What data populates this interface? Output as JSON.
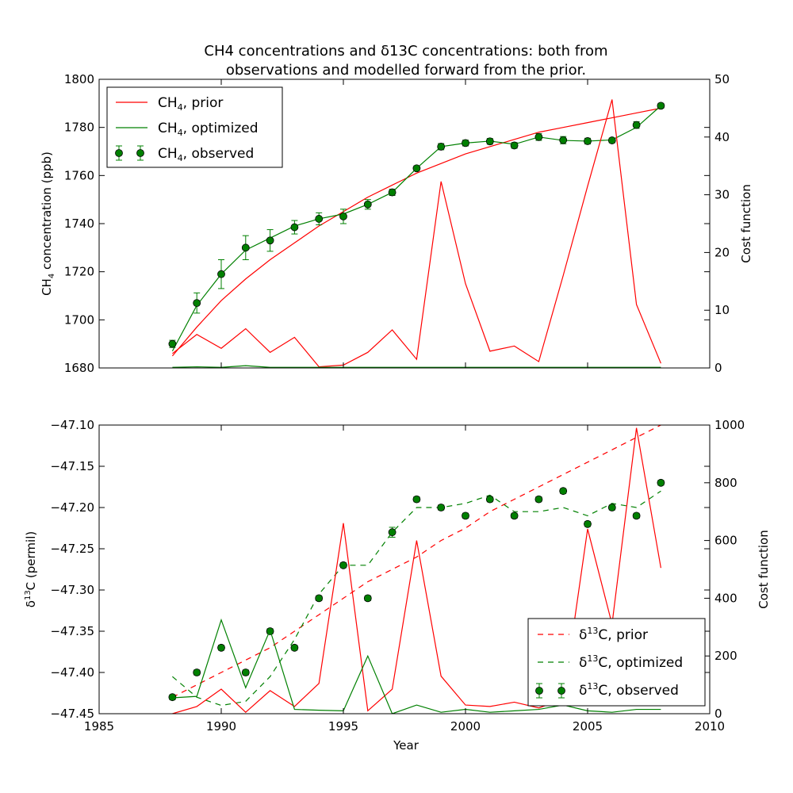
{
  "colors": {
    "prior": "#ff0000",
    "optimized": "#008000",
    "observed": "#008000"
  },
  "chart_data": [
    {
      "type": "line",
      "title_line1": "CH4 concentrations and δ13C concentrations: both from",
      "title_line2": "observations and modelled forward from the prior.",
      "ylabel_left_main": "CH",
      "ylabel_left_sub": "4",
      "ylabel_left_rest": " concentration (ppb)",
      "ylabel_right": "Cost function",
      "xlim": [
        1985,
        2010
      ],
      "ylim_left": [
        1680,
        1800
      ],
      "ylim_right": [
        0,
        50
      ],
      "yticks_left": [
        "1680",
        "1700",
        "1720",
        "1740",
        "1760",
        "1780",
        "1800"
      ],
      "yticks_right": [
        "0",
        "10",
        "20",
        "30",
        "40",
        "50"
      ],
      "legend_placement": "upper-left",
      "legend": [
        {
          "main": "CH",
          "sub": "4",
          "rest": ", prior"
        },
        {
          "main": "CH",
          "sub": "4",
          "rest": ", optimized"
        },
        {
          "main": "CH",
          "sub": "4",
          "rest": ", observed"
        }
      ],
      "x": [
        1988,
        1989,
        1990,
        1991,
        1992,
        1993,
        1994,
        1995,
        1996,
        1997,
        1998,
        1999,
        2000,
        2001,
        2002,
        2003,
        2004,
        2005,
        2006,
        2007,
        2008
      ],
      "series": [
        {
          "role": "prior",
          "axis": "left",
          "values": [
            1685,
            1697,
            1708,
            1717,
            1725,
            1732,
            1739,
            1745,
            1751,
            1756,
            1761,
            1765,
            1769,
            1772,
            1775,
            1778,
            1780,
            1782,
            1784,
            1786,
            1788
          ]
        },
        {
          "role": "optimized",
          "axis": "left",
          "values": [
            1687,
            1706,
            1719,
            1729,
            1734,
            1739,
            1742,
            1744,
            1748,
            1753,
            1763,
            1772,
            1773.5,
            1774.3,
            1773,
            1776,
            1774.6,
            1774.3,
            1774.8,
            1780,
            1789
          ]
        },
        {
          "role": "observed",
          "axis": "left",
          "values": [
            1690,
            1707,
            1719,
            1730,
            1733,
            1738.5,
            1742,
            1743,
            1748,
            1753,
            1763,
            1772,
            1773.5,
            1774.2,
            1772.5,
            1776,
            1774.7,
            1774.3,
            1774.6,
            1781,
            1789
          ],
          "errors": [
            1.5,
            4.2,
            6,
            5,
            4.5,
            2.8,
            2.5,
            3,
            2,
            1.3,
            1,
            1.3,
            1.2,
            1.2,
            1.2,
            1.4,
            1.5,
            1.2,
            1,
            1.4,
            1
          ]
        },
        {
          "role": "prior",
          "axis": "right",
          "values": [
            2.5,
            5.8,
            3.4,
            6.8,
            2.7,
            5.3,
            0.2,
            0.5,
            2.7,
            6.6,
            1.5,
            32.3,
            14.6,
            2.9,
            3.8,
            1.1,
            16,
            31.5,
            46.5,
            11,
            0.8
          ]
        },
        {
          "role": "optimized",
          "axis": "right",
          "values": [
            0.1,
            0.2,
            0.1,
            0.4,
            0.1,
            0.1,
            0.1,
            0.1,
            0.1,
            0.1,
            0.1,
            0.1,
            0.1,
            0.1,
            0.1,
            0.1,
            0.1,
            0.1,
            0.1,
            0.1,
            0.1
          ]
        }
      ]
    },
    {
      "type": "line",
      "xlabel": "Year",
      "ylabel_left_pre": "δ",
      "ylabel_left_sup": "13",
      "ylabel_left_rest": "C (permil)",
      "ylabel_right": "Cost function",
      "xlim": [
        1985,
        2010
      ],
      "ylim_left": [
        -47.45,
        -47.1
      ],
      "ylim_right": [
        0,
        1000
      ],
      "xticks": [
        "1985",
        "1990",
        "1995",
        "2000",
        "2005",
        "2010"
      ],
      "yticks_left": [
        "−47.45",
        "−47.40",
        "−47.35",
        "−47.30",
        "−47.25",
        "−47.20",
        "−47.15",
        "−47.10"
      ],
      "yticks_right": [
        "0",
        "200",
        "400",
        "600",
        "800",
        "1000"
      ],
      "legend_placement": "lower-right",
      "legend": [
        {
          "pre": "δ",
          "sup": "13",
          "rest": "C, prior"
        },
        {
          "pre": "δ",
          "sup": "13",
          "rest": "C, optimized"
        },
        {
          "pre": "δ",
          "sup": "13",
          "rest": "C, observed"
        }
      ],
      "x": [
        1988,
        1989,
        1990,
        1991,
        1992,
        1993,
        1994,
        1995,
        1996,
        1997,
        1998,
        1999,
        2000,
        2001,
        2002,
        2003,
        2004,
        2005,
        2006,
        2007,
        2008
      ],
      "series": [
        {
          "role": "prior",
          "axis": "left",
          "dashed": true,
          "values": [
            -47.43,
            -47.415,
            -47.4,
            -47.385,
            -47.37,
            -47.35,
            -47.33,
            -47.31,
            -47.29,
            -47.275,
            -47.26,
            -47.24,
            -47.225,
            -47.205,
            -47.19,
            -47.175,
            -47.16,
            -47.145,
            -47.13,
            -47.115,
            -47.1
          ]
        },
        {
          "role": "optimized",
          "axis": "left",
          "dashed": true,
          "values": [
            -47.405,
            -47.43,
            -47.44,
            -47.435,
            -47.405,
            -47.36,
            -47.305,
            -47.27,
            -47.27,
            -47.23,
            -47.2,
            -47.2,
            -47.195,
            -47.185,
            -47.205,
            -47.205,
            -47.2,
            -47.21,
            -47.195,
            -47.2,
            -47.18
          ]
        },
        {
          "role": "observed",
          "axis": "left",
          "values": [
            -47.43,
            -47.4,
            -47.37,
            -47.4,
            -47.35,
            -47.37,
            -47.31,
            -47.27,
            -47.31,
            -47.23,
            -47.19,
            -47.2,
            -47.21,
            -47.19,
            -47.21,
            -47.19,
            -47.18,
            -47.22,
            -47.2,
            -47.21,
            -47.17
          ],
          "errors": [
            0.003,
            0.003,
            0.003,
            0.003,
            0.003,
            0.003,
            0.003,
            0.003,
            0.003,
            0.006,
            0.003,
            0.003,
            0.003,
            0.003,
            0.003,
            0.003,
            0.003,
            0.003,
            0.003,
            0.003,
            0.003
          ]
        },
        {
          "role": "prior",
          "axis": "right",
          "values": [
            0,
            25,
            85,
            5,
            80,
            25,
            105,
            660,
            10,
            85,
            600,
            130,
            30,
            25,
            40,
            20,
            50,
            640,
            310,
            990,
            505
          ]
        },
        {
          "role": "optimized",
          "axis": "right",
          "values": [
            55,
            60,
            325,
            90,
            290,
            15,
            12,
            10,
            200,
            0,
            30,
            5,
            15,
            5,
            10,
            15,
            30,
            10,
            5,
            15,
            15
          ]
        }
      ]
    }
  ]
}
